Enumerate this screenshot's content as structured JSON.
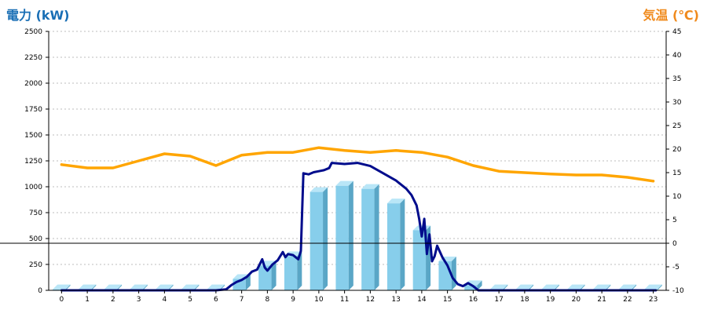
{
  "colors": {
    "power_title": "#1a6fb5",
    "temp_title": "#f08a1c",
    "bar_front": "#87ceeb",
    "bar_side": "#5aa6c6",
    "bar_top": "#b9e6f7",
    "power_line": "#000c8c",
    "temp_line": "#ffa500",
    "grid": "#bdbdbd",
    "axis": "#000000"
  },
  "chart_data": {
    "type": "bar",
    "left_axis_title": "電力 (kW)",
    "right_axis_title": "気温 (℃)",
    "categories": [
      "0",
      "1",
      "2",
      "3",
      "4",
      "5",
      "6",
      "7",
      "8",
      "9",
      "10",
      "11",
      "12",
      "13",
      "14",
      "15",
      "16",
      "17",
      "18",
      "19",
      "20",
      "21",
      "22",
      "23"
    ],
    "ylim_left": [
      0,
      2500
    ],
    "yticks_left": [
      0,
      250,
      500,
      750,
      1000,
      1250,
      1500,
      1750,
      2000,
      2250,
      2500
    ],
    "ylim_right": [
      -10,
      45
    ],
    "yticks_right": [
      -10,
      -5,
      0,
      5,
      10,
      15,
      20,
      25,
      30,
      35,
      40,
      45
    ],
    "grid": "horizontal-dashed",
    "series": [
      {
        "type": "bar",
        "axis": "left",
        "values": [
          10,
          10,
          10,
          10,
          10,
          10,
          10,
          110,
          240,
          330,
          950,
          1010,
          980,
          840,
          580,
          280,
          50,
          10,
          10,
          10,
          10,
          10,
          10,
          10
        ]
      },
      {
        "type": "line",
        "axis": "left",
        "x": [
          0,
          0.5,
          1,
          1.5,
          2,
          2.5,
          3,
          3.5,
          4,
          4.5,
          5,
          5.5,
          6,
          6.4,
          6.6,
          6.8,
          7.0,
          7.2,
          7.4,
          7.6,
          7.8,
          7.9,
          8.0,
          8.2,
          8.4,
          8.6,
          8.7,
          8.8,
          9.0,
          9.1,
          9.2,
          9.3,
          9.4,
          9.6,
          9.8,
          10.0,
          10.2,
          10.4,
          10.5,
          11.0,
          11.5,
          12.0,
          12.5,
          13.0,
          13.4,
          13.6,
          13.8,
          13.9,
          14.0,
          14.1,
          14.2,
          14.3,
          14.4,
          14.5,
          14.6,
          14.8,
          15.0,
          15.2,
          15.4,
          15.6,
          15.8,
          16.0,
          16.2,
          17,
          18,
          19,
          20,
          21,
          22,
          23.1
        ],
        "values": [
          0,
          0,
          0,
          0,
          0,
          0,
          0,
          0,
          0,
          0,
          0,
          0,
          0,
          10,
          50,
          80,
          100,
          130,
          180,
          200,
          300,
          220,
          190,
          250,
          290,
          370,
          320,
          350,
          340,
          320,
          300,
          380,
          1130,
          1120,
          1140,
          1150,
          1160,
          1180,
          1230,
          1220,
          1230,
          1200,
          1130,
          1060,
          980,
          920,
          820,
          690,
          520,
          690,
          350,
          540,
          280,
          330,
          430,
          320,
          240,
          120,
          60,
          40,
          70,
          40,
          0,
          0,
          0,
          0,
          0,
          0,
          0,
          0
        ]
      },
      {
        "type": "line",
        "axis": "right",
        "x": [
          0,
          1,
          2,
          3,
          4,
          5,
          6,
          7,
          8,
          9,
          10,
          11,
          12,
          13,
          14,
          15,
          16,
          17,
          18,
          19,
          20,
          21,
          22,
          23
        ],
        "values": [
          16.7,
          16.0,
          16.0,
          17.5,
          19.0,
          18.5,
          16.5,
          18.7,
          19.3,
          19.3,
          20.3,
          19.7,
          19.3,
          19.7,
          19.3,
          18.3,
          16.5,
          15.3,
          15.0,
          14.7,
          14.5,
          14.5,
          14.0,
          13.2
        ]
      }
    ]
  }
}
